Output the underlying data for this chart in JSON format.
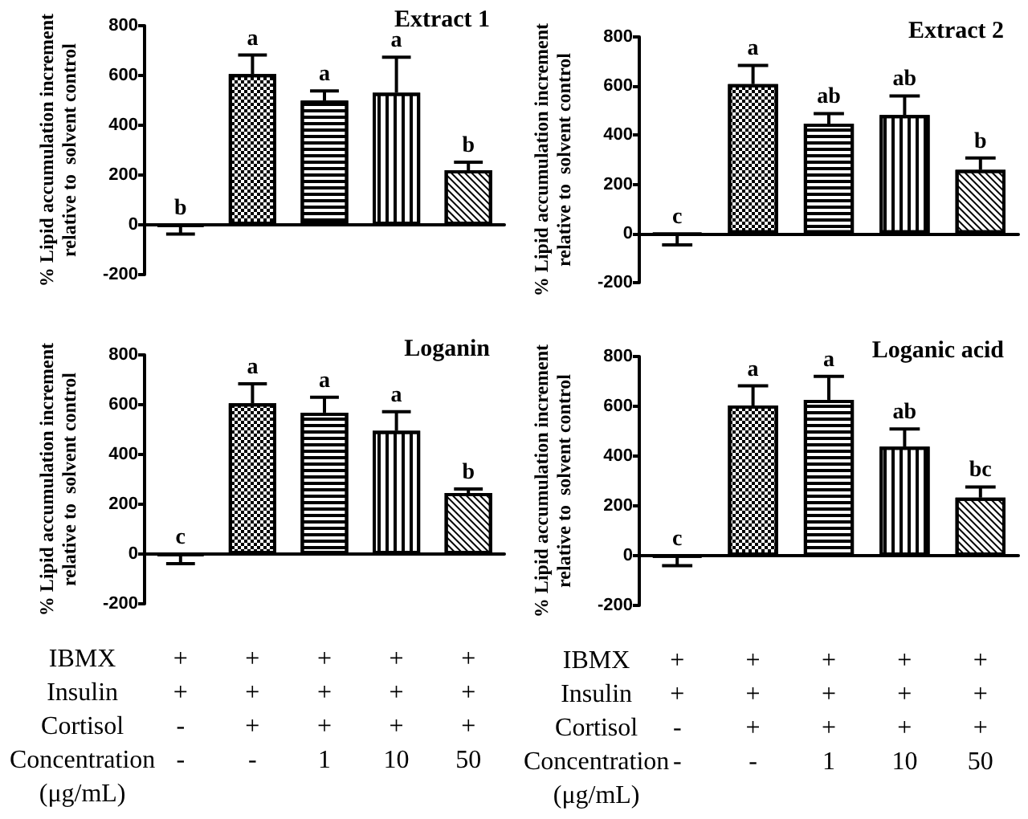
{
  "chart_data": [
    {
      "type": "bar",
      "title": "Extract 1",
      "ylabel": "% Lipid accumulation increment\nrelative to  solvent control",
      "categories": [
        null,
        null,
        null,
        null,
        null
      ],
      "values": [
        -5,
        606,
        499,
        531,
        219
      ],
      "errors": [
        [
          -37,
          -5
        ],
        [
          606,
          682
        ],
        [
          499,
          538
        ],
        [
          531,
          673
        ],
        [
          219,
          252
        ]
      ],
      "value_labels": [
        "b",
        "a",
        "a",
        "a",
        "b"
      ],
      "ylim": [
        -200,
        800
      ],
      "yticks": [
        -200,
        0,
        200,
        400,
        600,
        800
      ]
    },
    {
      "type": "bar",
      "title": "Extract 2",
      "ylabel": "% Lipid accumulation increment\nrelative to  solvent control",
      "categories": [
        null,
        null,
        null,
        null,
        null
      ],
      "values": [
        -5,
        608,
        447,
        482,
        259
      ],
      "errors": [
        [
          -46,
          -5
        ],
        [
          608,
          684
        ],
        [
          447,
          488
        ],
        [
          482,
          560
        ],
        [
          259,
          307
        ]
      ],
      "value_labels": [
        "c",
        "a",
        "ab",
        "ab",
        "b"
      ],
      "ylim": [
        -200,
        800
      ],
      "yticks": [
        -200,
        0,
        200,
        400,
        600,
        800
      ]
    },
    {
      "type": "bar",
      "title": "Loganin",
      "ylabel": "% Lipid accumulation increment\nrelative to  solvent control",
      "categories": [
        "+\n+\n-\n-",
        "+\n+\n+\n-",
        "+\n+\n+\n1",
        "+\n+\n+\n10",
        "+\n+\n+\n50"
      ],
      "values": [
        -5,
        606,
        568,
        495,
        245
      ],
      "errors": [
        [
          -39,
          -5
        ],
        [
          606,
          684
        ],
        [
          568,
          630
        ],
        [
          495,
          572
        ],
        [
          245,
          261
        ]
      ],
      "value_labels": [
        "c",
        "a",
        "a",
        "a",
        "b"
      ],
      "annotations": [
        "IBMX\nInsulin\nCortisol\nConcentration\n(μg/mL)"
      ],
      "ylim": [
        -200,
        800
      ],
      "yticks": [
        -200,
        0,
        200,
        400,
        600,
        800
      ]
    },
    {
      "type": "bar",
      "title": "Loganic acid",
      "ylabel": "% Lipid accumulation increment\nrelative to  solvent control",
      "categories": [
        "+\n+\n-\n-",
        "+\n+\n+\n-",
        "+\n+\n+\n1",
        "+\n+\n+\n10",
        "+\n+\n+\n50"
      ],
      "values": [
        -5,
        603,
        626,
        438,
        233
      ],
      "errors": [
        [
          -40,
          -5
        ],
        [
          603,
          682
        ],
        [
          626,
          720
        ],
        [
          438,
          509
        ],
        [
          233,
          276
        ]
      ],
      "value_labels": [
        "c",
        "a",
        "a",
        "ab",
        "bc"
      ],
      "annotations": [
        "IBMX\nInsulin\nCortisol\nConcentration\n(μg/mL)"
      ],
      "ylim": [
        -200,
        800
      ],
      "yticks": [
        -200,
        0,
        200,
        400,
        600,
        800
      ]
    }
  ]
}
